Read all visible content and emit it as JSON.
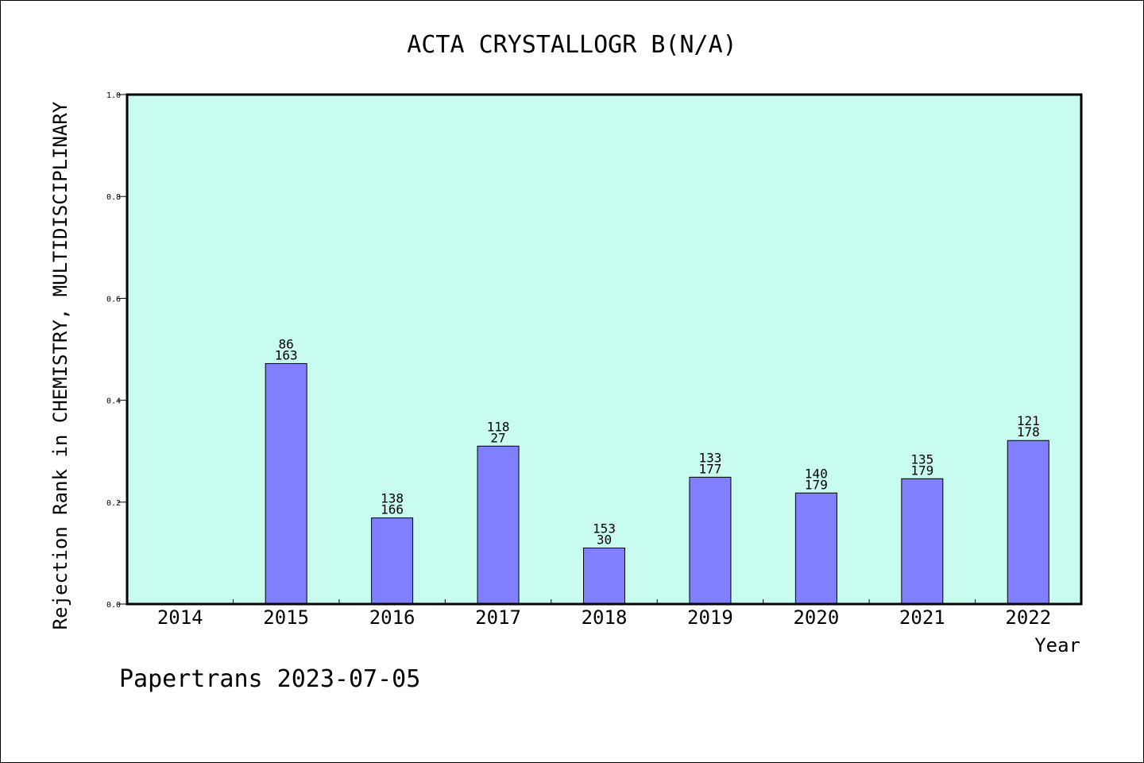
{
  "chart_data": {
    "type": "bar",
    "title": "ACTA CRYSTALLOGR B(N/A)",
    "xlabel": "Year",
    "ylabel": "Rejection Rank in CHEMISTRY, MULTIDISCIPLINARY",
    "ylim": [
      0,
      1.0
    ],
    "yticks": [
      "0.0",
      "0.2",
      "0.4",
      "0.6",
      "0.8",
      "1.0"
    ],
    "categories": [
      "2014",
      "2015",
      "2016",
      "2017",
      "2018",
      "2019",
      "2020",
      "2021",
      "2022"
    ],
    "values": [
      null,
      0.472,
      0.169,
      0.31,
      0.11,
      0.249,
      0.218,
      0.246,
      0.321
    ],
    "label_top": [
      "",
      "86",
      "138",
      "118",
      "153",
      "133",
      "140",
      "135",
      "121"
    ],
    "label_bottom": [
      "",
      "163",
      "166",
      "27",
      "30",
      "177",
      "179",
      "179",
      "178"
    ],
    "grid": false,
    "colors": {
      "plot_background": "#c8fcee",
      "bar_fill": "#8080ff",
      "bar_stroke": "#000000"
    }
  },
  "footer": {
    "credit": "Papertrans 2023-07-05"
  }
}
